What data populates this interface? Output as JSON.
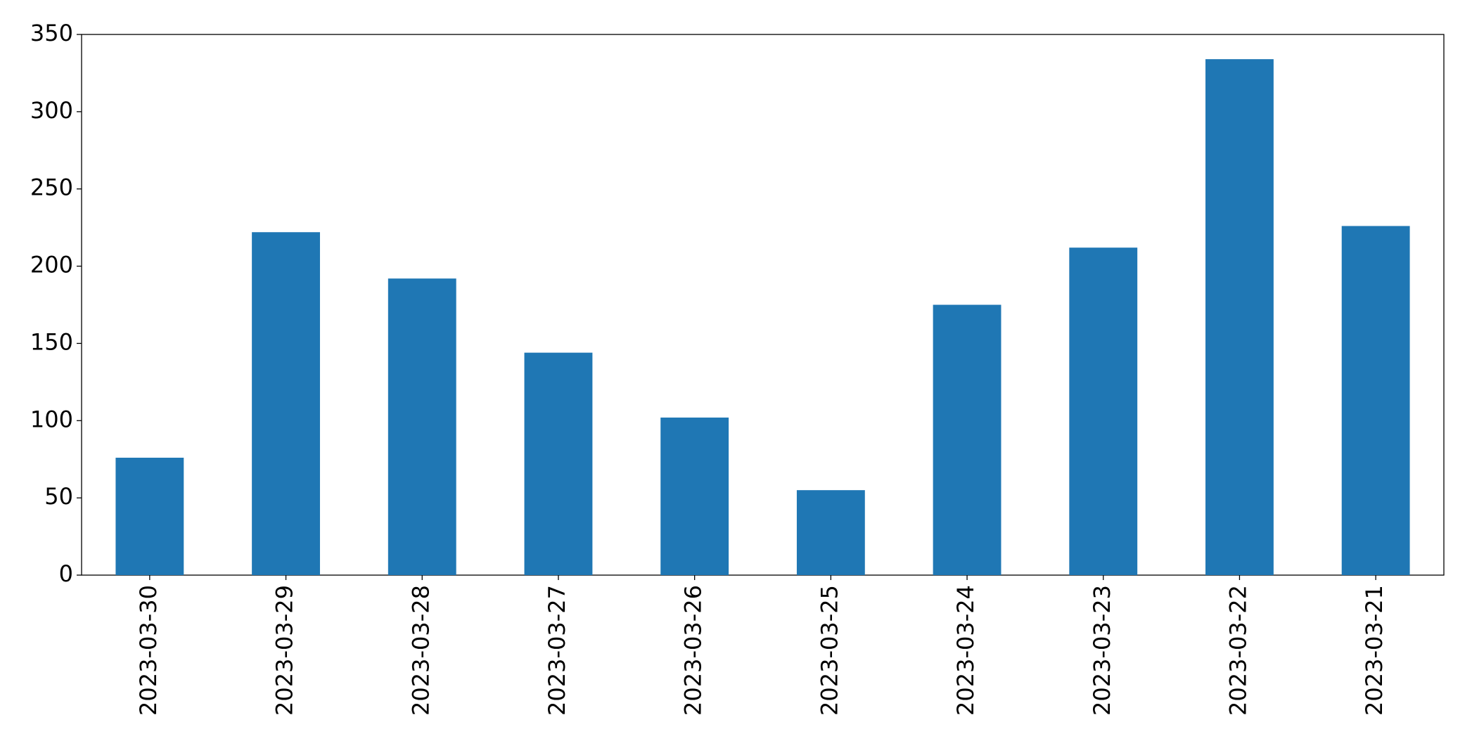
{
  "chart_data": {
    "type": "bar",
    "categories": [
      "2023-03-30",
      "2023-03-29",
      "2023-03-28",
      "2023-03-27",
      "2023-03-26",
      "2023-03-25",
      "2023-03-24",
      "2023-03-23",
      "2023-03-22",
      "2023-03-21"
    ],
    "values": [
      76,
      222,
      192,
      144,
      102,
      55,
      175,
      212,
      334,
      226
    ],
    "color": "#1f77b4",
    "ylim": [
      0,
      350
    ],
    "yticks": [
      0,
      50,
      100,
      150,
      200,
      250,
      300,
      350
    ],
    "grid": false
  }
}
